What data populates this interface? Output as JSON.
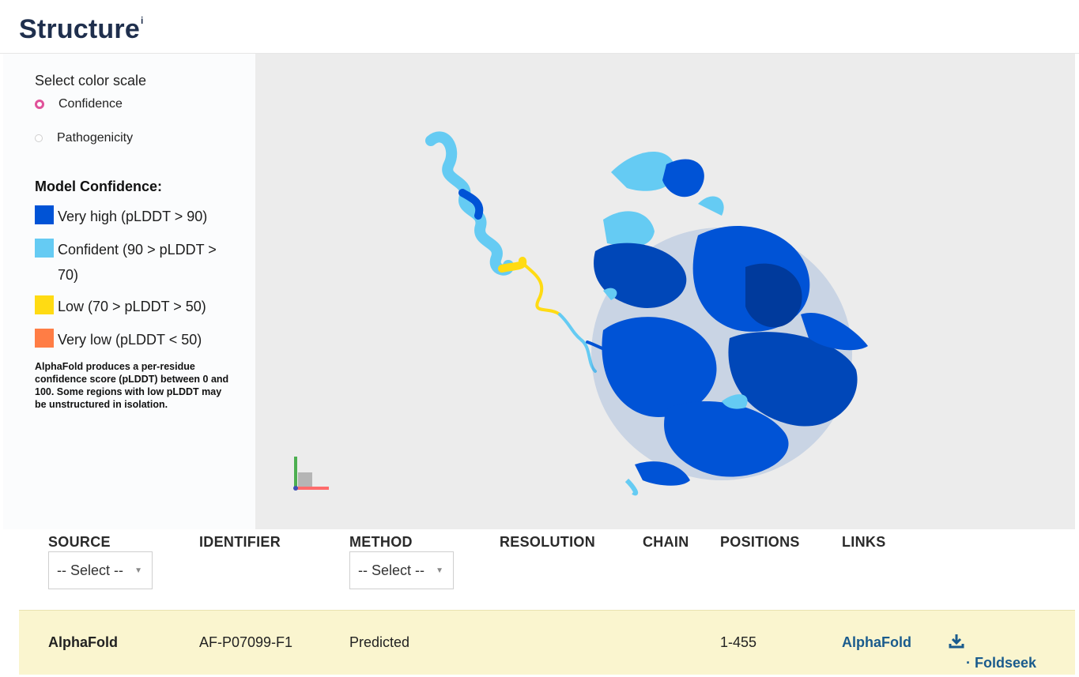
{
  "header": {
    "title": "Structure",
    "info_marker": "i"
  },
  "color_scale": {
    "label": "Select color scale",
    "options": [
      {
        "label": "Confidence",
        "selected": true
      },
      {
        "label": "Pathogenicity",
        "selected": false
      }
    ]
  },
  "legend": {
    "title": "Model Confidence:",
    "items": [
      {
        "label": "Very high (pLDDT > 90)",
        "color": "#0053d6"
      },
      {
        "label": "Confident (90 > pLDDT > 70)",
        "color": "#65cbf3"
      },
      {
        "label": "Low (70 > pLDDT > 50)",
        "color": "#ffdb13"
      },
      {
        "label": "Very low (pLDDT < 50)",
        "color": "#ff7d45"
      }
    ],
    "note": "AlphaFold produces a per-residue confidence score (pLDDT) between 0 and 100. Some regions with low pLDDT may be unstructured in isolation."
  },
  "table": {
    "headers": {
      "source": "SOURCE",
      "identifier": "IDENTIFIER",
      "method": "METHOD",
      "resolution": "RESOLUTION",
      "chain": "CHAIN",
      "positions": "POSITIONS",
      "links": "LINKS"
    },
    "filters": {
      "source_select": "-- Select --",
      "method_select": "-- Select --"
    },
    "rows": [
      {
        "source": "AlphaFold",
        "identifier": "AF-P07099-F1",
        "method": "Predicted",
        "resolution": "",
        "chain": "",
        "positions": "1-455",
        "link_primary": "AlphaFold",
        "link_secondary": "· Foldseek"
      }
    ]
  },
  "icons": {
    "download": "download-icon",
    "caret": "caret-down-icon"
  }
}
